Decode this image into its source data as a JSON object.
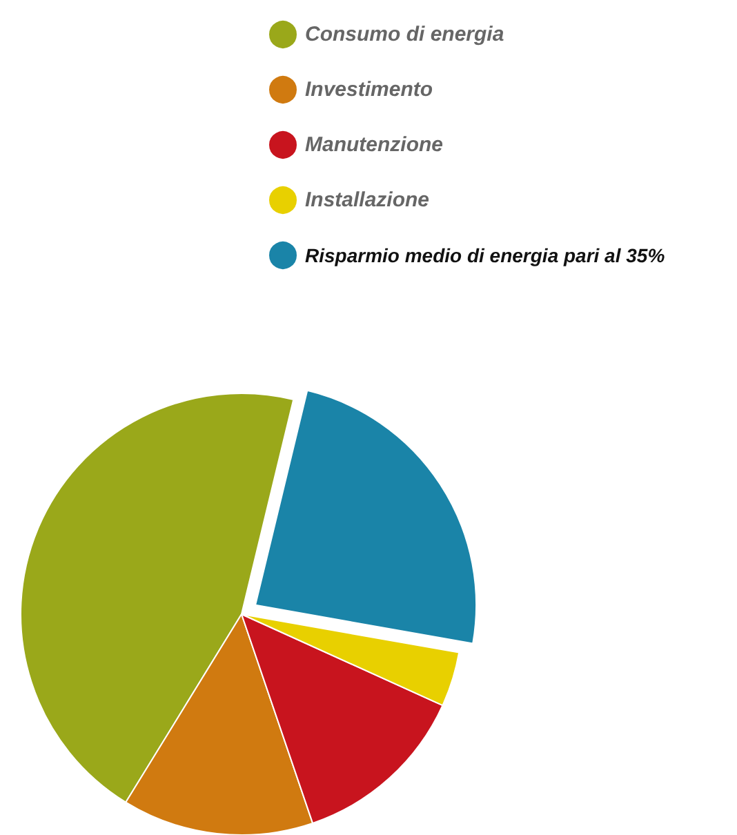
{
  "chart_data": {
    "type": "pie",
    "categories": [
      "Consumo di energia",
      "Investimento",
      "Manutenzione",
      "Installazione",
      "Risparmio medio di energia pari al 35%"
    ],
    "values": [
      45,
      14,
      13,
      4,
      24
    ],
    "colors": [
      "#9aa81a",
      "#d07a10",
      "#c8141e",
      "#e8d000",
      "#1a84a8"
    ],
    "legend": "top"
  }
}
